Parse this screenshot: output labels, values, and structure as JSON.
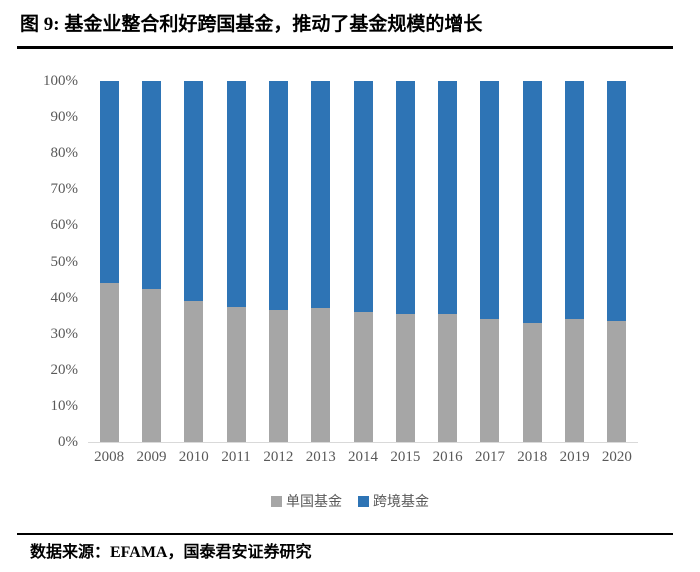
{
  "page": {
    "title": "图 9: 基金业整合利好跨国基金，推动了基金规模的增长",
    "source": "数据来源：EFAMA，国泰君安证券研究"
  },
  "chart_data": {
    "type": "bar",
    "variant": "stacked-100-percent",
    "title": "",
    "xlabel": "",
    "ylabel": "",
    "categories": [
      "2008",
      "2009",
      "2010",
      "2011",
      "2012",
      "2013",
      "2014",
      "2015",
      "2016",
      "2017",
      "2018",
      "2019",
      "2020"
    ],
    "series": [
      {
        "name": "单国基金",
        "color": "#A6A6A6",
        "values": [
          44,
          42.5,
          39,
          37.5,
          36.5,
          37,
          36,
          35.5,
          35.5,
          34,
          33,
          34,
          33.5
        ]
      },
      {
        "name": "跨境基金",
        "color": "#2E74B5",
        "values": [
          56,
          57.5,
          61,
          62.5,
          63.5,
          63,
          64,
          64.5,
          64.5,
          66,
          67,
          66,
          66.5
        ]
      }
    ],
    "y_ticks": [
      "0%",
      "10%",
      "20%",
      "30%",
      "40%",
      "50%",
      "60%",
      "70%",
      "80%",
      "90%",
      "100%"
    ],
    "ylim": [
      0,
      100
    ],
    "grid": false,
    "legend_position": "bottom",
    "axis_line_color": "#D9D9D9",
    "tick_label_color": "#595959"
  }
}
